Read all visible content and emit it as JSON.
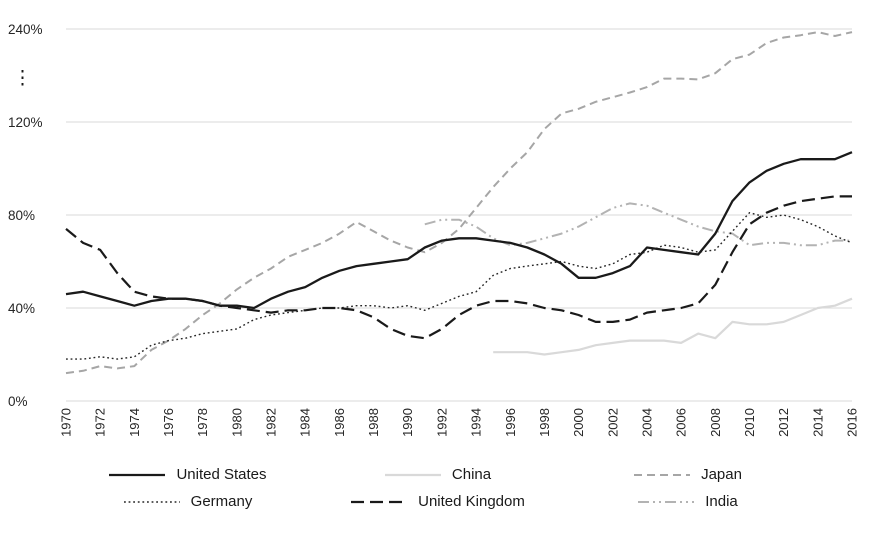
{
  "chart_data": {
    "type": "line",
    "title": "",
    "xlabel": "",
    "ylabel": "",
    "x": [
      1970,
      1971,
      1972,
      1973,
      1974,
      1975,
      1976,
      1977,
      1978,
      1979,
      1980,
      1981,
      1982,
      1983,
      1984,
      1985,
      1986,
      1987,
      1988,
      1989,
      1990,
      1991,
      1992,
      1993,
      1994,
      1995,
      1996,
      1997,
      1998,
      1999,
      2000,
      2001,
      2002,
      2003,
      2004,
      2005,
      2006,
      2007,
      2008,
      2009,
      2010,
      2011,
      2012,
      2013,
      2014,
      2015,
      2016
    ],
    "x_tick_labels": [
      "1970",
      "1972",
      "1974",
      "1976",
      "1978",
      "1980",
      "1982",
      "1984",
      "1986",
      "1988",
      "1990",
      "1992",
      "1994",
      "1996",
      "1998",
      "2000",
      "2002",
      "2004",
      "2006",
      "2008",
      "2010",
      "2012",
      "2014",
      "2016"
    ],
    "y_axis": {
      "ticks": [
        0,
        40,
        80,
        120,
        240
      ],
      "tick_labels": [
        "0%",
        "40%",
        "80%",
        "120%",
        "240%"
      ],
      "broken_axis": true,
      "break_between": [
        120,
        240
      ],
      "break_marker": "⋮"
    },
    "grid": "horizontal",
    "series": [
      {
        "name": "United States",
        "color": "#1a1a1a",
        "dash": "solid",
        "width": 2.3,
        "values": [
          46,
          47,
          45,
          43,
          41,
          43,
          44,
          44,
          43,
          41,
          41,
          40,
          44,
          47,
          49,
          53,
          56,
          58,
          59,
          60,
          61,
          66,
          69,
          70,
          70,
          69,
          68,
          66,
          63,
          59,
          53,
          53,
          55,
          58,
          66,
          65,
          64,
          63,
          72,
          86,
          94,
          99,
          102,
          104,
          104,
          104,
          107
        ]
      },
      {
        "name": "China",
        "color": "#d9d9d9",
        "dash": "solid",
        "width": 2.2,
        "values": [
          null,
          null,
          null,
          null,
          null,
          null,
          null,
          null,
          null,
          null,
          null,
          null,
          null,
          null,
          null,
          null,
          null,
          null,
          null,
          null,
          null,
          null,
          null,
          null,
          null,
          21,
          21,
          21,
          20,
          21,
          22,
          24,
          25,
          26,
          26,
          26,
          25,
          29,
          27,
          34,
          33,
          33,
          34,
          37,
          40,
          41,
          44
        ]
      },
      {
        "name": "Japan",
        "color": "#a6a6a6",
        "dash": "dashed",
        "width": 2,
        "values": [
          12,
          13,
          15,
          14,
          15,
          22,
          26,
          31,
          37,
          42,
          48,
          53,
          57,
          62,
          65,
          68,
          72,
          77,
          73,
          69,
          66,
          64,
          68,
          74,
          83,
          92,
          100,
          107,
          117,
          131,
          137,
          146,
          152,
          158,
          165,
          176,
          176,
          175,
          183,
          201,
          207,
          222,
          229,
          232,
          236,
          231,
          236
        ]
      },
      {
        "name": "Germany",
        "color": "#262626",
        "dash": "dotted",
        "width": 1.4,
        "values": [
          18,
          18,
          19,
          18,
          19,
          24,
          26,
          27,
          29,
          30,
          31,
          35,
          37,
          38,
          39,
          40,
          40,
          41,
          41,
          40,
          41,
          39,
          42,
          45,
          47,
          54,
          57,
          58,
          59,
          60,
          58,
          57,
          59,
          63,
          64,
          67,
          66,
          64,
          65,
          73,
          81,
          79,
          80,
          78,
          75,
          71,
          68
        ]
      },
      {
        "name": "United Kingdom",
        "color": "#1a1a1a",
        "dash": "longdash",
        "width": 2.2,
        "values": [
          74,
          68,
          65,
          55,
          47,
          45,
          44,
          44,
          43,
          41,
          40,
          39,
          38,
          39,
          39,
          40,
          40,
          39,
          36,
          31,
          28,
          27,
          31,
          37,
          41,
          43,
          43,
          42,
          40,
          39,
          37,
          34,
          34,
          35,
          38,
          39,
          40,
          42,
          50,
          64,
          76,
          81,
          84,
          86,
          87,
          88,
          88
        ]
      },
      {
        "name": "India",
        "color": "#b3b3b3",
        "dash": "dashdotdot",
        "width": 2,
        "values": [
          null,
          null,
          null,
          null,
          null,
          null,
          null,
          null,
          null,
          null,
          null,
          null,
          null,
          null,
          null,
          null,
          null,
          null,
          null,
          null,
          null,
          76,
          78,
          78,
          75,
          70,
          67,
          68,
          70,
          72,
          75,
          79,
          83,
          85,
          84,
          81,
          78,
          75,
          73,
          72,
          67,
          68,
          68,
          67,
          67,
          69,
          69
        ]
      }
    ],
    "legend": {
      "position": "bottom",
      "rows": [
        [
          "United States",
          "China",
          "Japan"
        ],
        [
          "Germany",
          "United Kingdom",
          "India"
        ]
      ]
    }
  }
}
